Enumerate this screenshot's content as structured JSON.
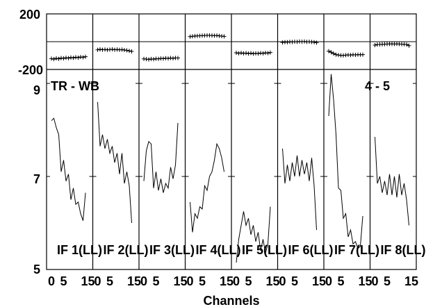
{
  "chart_data": {
    "type": "line",
    "title_left": "TR - WB",
    "title_right": "4 - 5",
    "xlabel": "Channels",
    "x_ticks": [
      "0",
      "5",
      "15"
    ],
    "phase": {
      "ylim": [
        -200,
        200
      ],
      "tick_labels": [
        "200",
        "-200"
      ]
    },
    "amplitude": {
      "ylim": [
        5,
        9.3
      ],
      "tick_labels": [
        "9",
        "7",
        "5"
      ]
    },
    "panels": [
      {
        "label": "IF 1(LL)",
        "phase": [
          -128,
          -132,
          -126,
          -130,
          -124,
          -127,
          -122,
          -125,
          -120,
          -123,
          -118,
          -121,
          -116,
          -119,
          -114
        ],
        "amp": [
          8.2,
          8.25,
          8.05,
          7.9,
          7.1,
          7.35,
          6.9,
          7.05,
          6.5,
          6.75,
          6.4,
          6.45,
          6.2,
          6.05,
          6.65
        ]
      },
      {
        "label": "IF 2(LL)",
        "phase": [
          -62,
          -58,
          -61,
          -59,
          -62,
          -60,
          -58,
          -61,
          -59,
          -62,
          -60,
          -63,
          -66,
          -70,
          -74
        ],
        "amp": [
          8.6,
          7.65,
          7.9,
          7.6,
          7.8,
          7.5,
          7.65,
          7.3,
          7.5,
          7.05,
          7.5,
          6.85,
          7.1,
          6.8,
          6.0
        ]
      },
      {
        "label": "IF 3(LL)",
        "phase": [
          -130,
          -132,
          -135,
          -131,
          -133,
          -129,
          -130,
          -127,
          -128,
          -125,
          -127,
          -124,
          -126,
          -123,
          -124
        ],
        "amp": [
          6.9,
          7.55,
          7.75,
          7.7,
          6.75,
          7.1,
          6.7,
          6.95,
          6.65,
          6.85,
          6.75,
          7.2,
          6.95,
          7.25,
          8.15
        ]
      },
      {
        "label": "IF 4(LL)",
        "phase": [
          38,
          41,
          43,
          44,
          45,
          46,
          47,
          48,
          48,
          47,
          46,
          47,
          44,
          42,
          40
        ],
        "amp": [
          6.45,
          5.8,
          6.2,
          6.1,
          6.35,
          6.3,
          6.8,
          6.7,
          7.0,
          7.1,
          7.35,
          7.7,
          7.6,
          7.4,
          7.1
        ]
      },
      {
        "label": "IF 5(LL)",
        "phase": [
          -84,
          -88,
          -85,
          -89,
          -86,
          -90,
          -87,
          -91,
          -88,
          -90,
          -86,
          -89,
          -84,
          -87,
          -82
        ],
        "amp": [
          5.15,
          5.65,
          5.95,
          6.25,
          5.95,
          6.1,
          5.75,
          5.95,
          5.6,
          5.8,
          5.4,
          5.65,
          5.35,
          5.55,
          6.35
        ]
      },
      {
        "label": "IF 6(LL)",
        "phase": [
          -6,
          -3,
          -4,
          -1,
          -2,
          0,
          -1,
          1,
          0,
          1,
          -1,
          0,
          -2,
          -4,
          -7
        ],
        "amp": [
          7.6,
          6.85,
          7.25,
          6.9,
          7.3,
          7.0,
          7.45,
          7.0,
          7.35,
          7.05,
          7.3,
          6.9,
          7.4,
          6.8,
          5.85
        ]
      },
      {
        "label": "IF 7(LL)",
        "phase": [
          -72,
          -80,
          -90,
          -98,
          -101,
          -104,
          -104,
          -102,
          -100,
          -101,
          -99,
          -100,
          -98,
          -99,
          -98
        ],
        "amp": [
          8.3,
          9.2,
          8.65,
          7.9,
          6.75,
          6.7,
          6.1,
          6.2,
          5.7,
          5.85,
          5.55,
          5.6,
          5.45,
          5.5,
          6.15
        ]
      },
      {
        "label": "IF 8(LL)",
        "phase": [
          -26,
          -22,
          -21,
          -20,
          -19,
          -18,
          -17,
          -17,
          -18,
          -17,
          -18,
          -19,
          -20,
          -21,
          -30
        ],
        "amp": [
          7.85,
          6.85,
          7.0,
          6.65,
          6.9,
          6.6,
          7.05,
          6.6,
          7.0,
          6.55,
          7.05,
          6.6,
          6.85,
          6.5,
          5.95
        ]
      }
    ]
  }
}
